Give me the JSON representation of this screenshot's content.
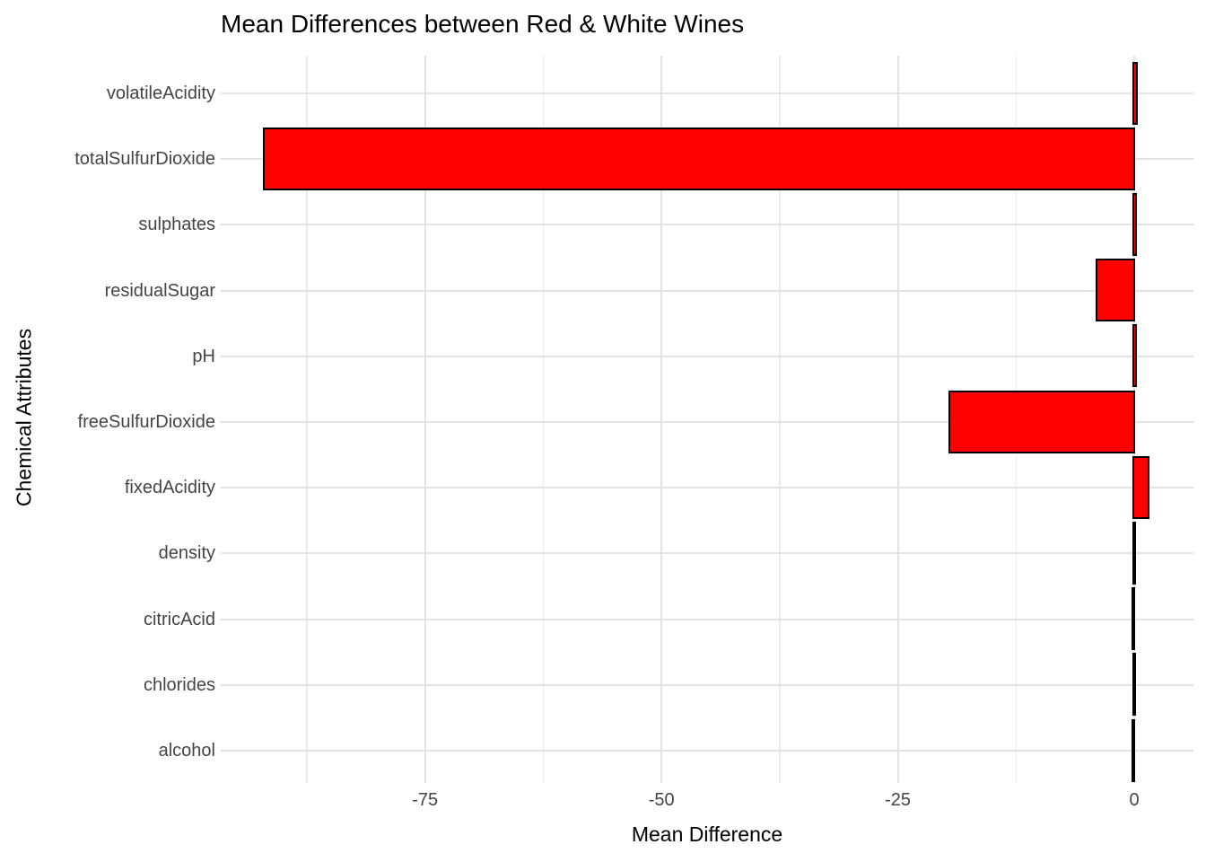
{
  "title": "Mean Differences between Red & White Wines",
  "chart_data": {
    "type": "bar",
    "orientation": "horizontal",
    "title": "Mean Differences between Red & White Wines",
    "xlabel": "Mean Difference",
    "ylabel": "Chemical Attributes",
    "categories_top_to_bottom": [
      "volatileAcidity",
      "totalSulfurDioxide",
      "sulphates",
      "residualSugar",
      "pH",
      "freeSulfurDioxide",
      "fixedAcidity",
      "density",
      "citricAcid",
      "chlorides",
      "alcohol"
    ],
    "values": [
      0.25,
      -91.89,
      0.17,
      -3.85,
      0.12,
      -19.44,
      1.47,
      0.003,
      -0.06,
      0.04,
      -0.09
    ],
    "x_axis": {
      "tick_labels": [
        "-75",
        "-50",
        "-25",
        "0"
      ],
      "ticks": [
        -75,
        -50,
        -25,
        0
      ],
      "minor_ticks": [
        -87.5,
        -62.5,
        -37.5,
        -12.5
      ],
      "range": [
        -96.6,
        6.3
      ]
    },
    "grid": "major-and-minor-x, major-y",
    "legend": false,
    "colors": {
      "bar_fill": "#ff0000",
      "bar_outline": "#000000",
      "grid_major": "#e3e3e3",
      "grid_minor": "#ebebeb",
      "tick_label": "#444444",
      "title": "#000000",
      "background": "#ffffff"
    }
  }
}
